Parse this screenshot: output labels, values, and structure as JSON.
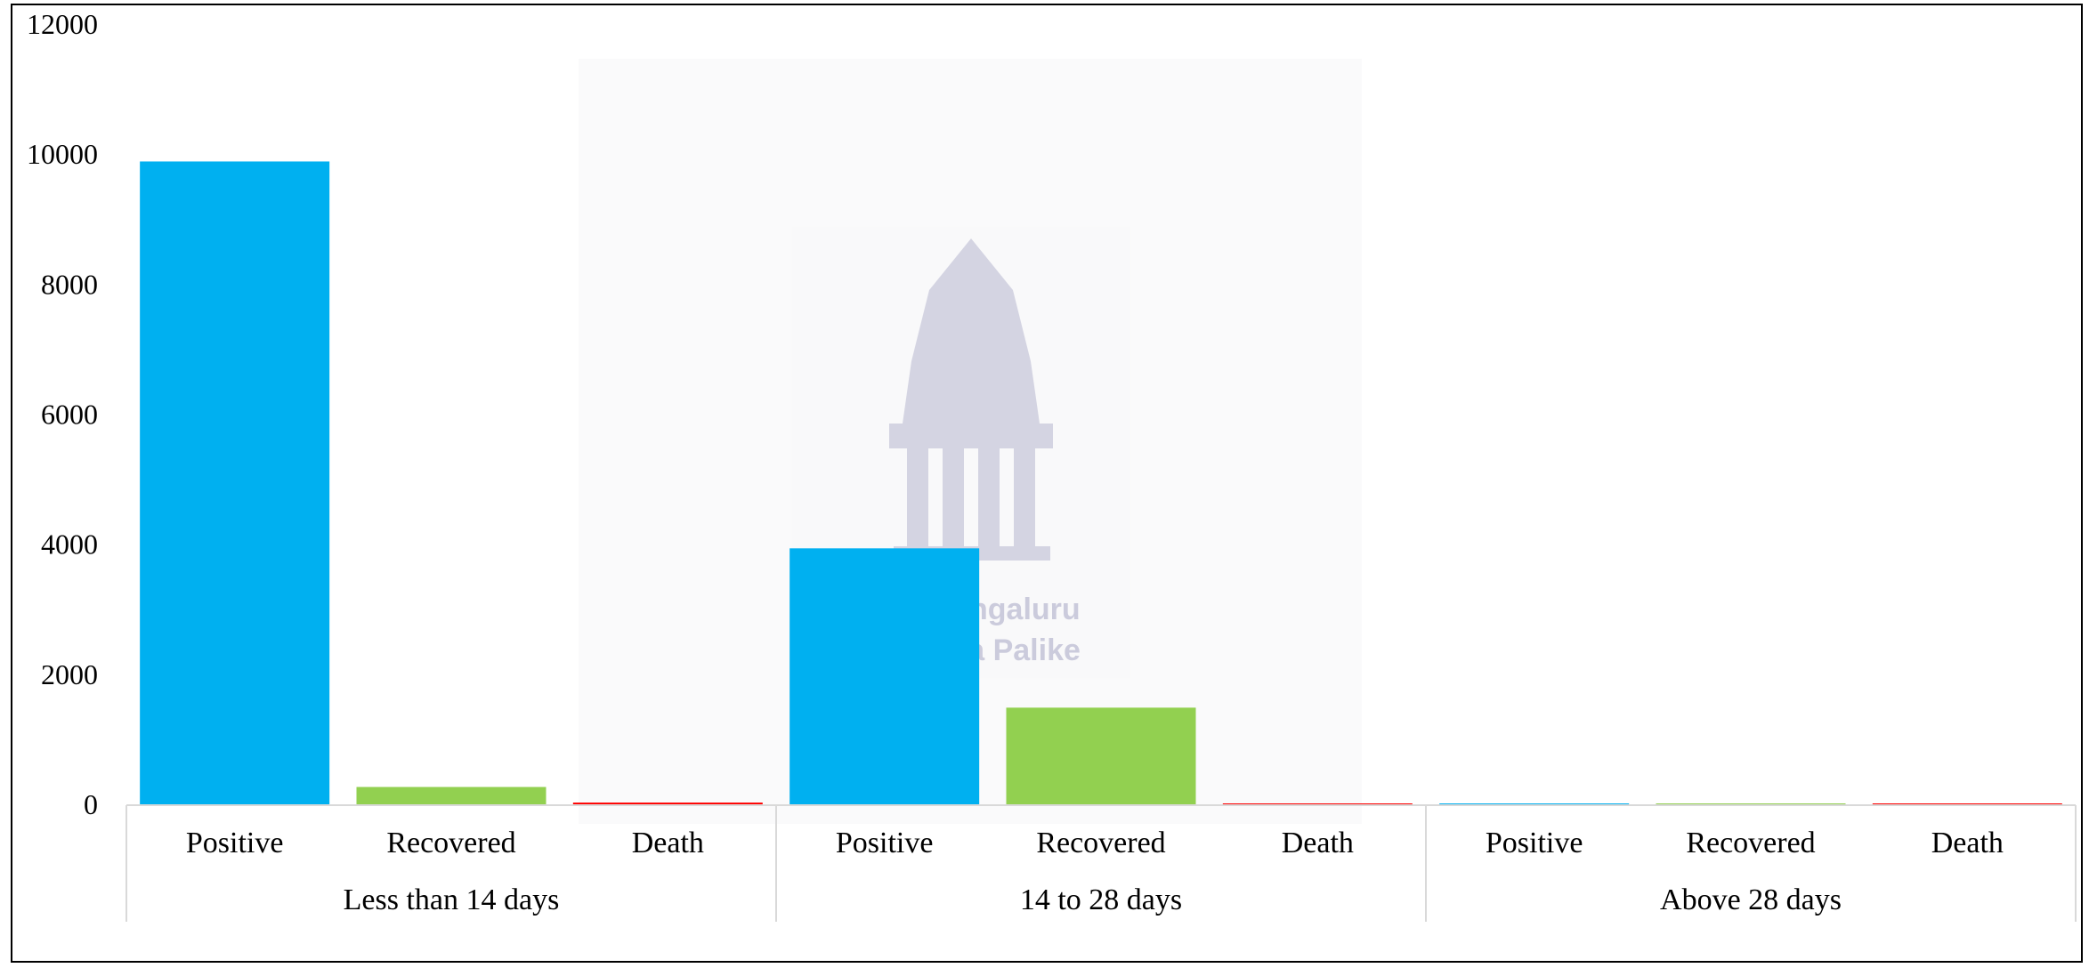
{
  "chart_data": {
    "type": "bar",
    "title": "",
    "xlabel": "",
    "ylabel": "",
    "ylim": [
      0,
      12000
    ],
    "yticks": [
      0,
      2000,
      4000,
      6000,
      8000,
      10000,
      12000
    ],
    "grid": false,
    "legend": "none",
    "groups": [
      {
        "label": "Less than 14 days",
        "bars": [
          {
            "category": "Positive",
            "value": 9900,
            "color": "#00b0f0"
          },
          {
            "category": "Recovered",
            "value": 280,
            "color": "#92d050"
          },
          {
            "category": "Death",
            "value": 40,
            "color": "#ff0000"
          }
        ]
      },
      {
        "label": "14 to 28 days",
        "bars": [
          {
            "category": "Positive",
            "value": 3950,
            "color": "#00b0f0"
          },
          {
            "category": "Recovered",
            "value": 1500,
            "color": "#92d050"
          },
          {
            "category": "Death",
            "value": 8,
            "color": "#ff0000"
          }
        ]
      },
      {
        "label": "Above 28 days",
        "bars": [
          {
            "category": "Positive",
            "value": 25,
            "color": "#00b0f0"
          },
          {
            "category": "Recovered",
            "value": 15,
            "color": "#92d050"
          },
          {
            "category": "Death",
            "value": 2,
            "color": "#ff0000"
          }
        ]
      }
    ]
  },
  "watermark": {
    "line1": "ngaluru",
    "line2": "ra Palike",
    "icon": "temple-tower-icon"
  }
}
